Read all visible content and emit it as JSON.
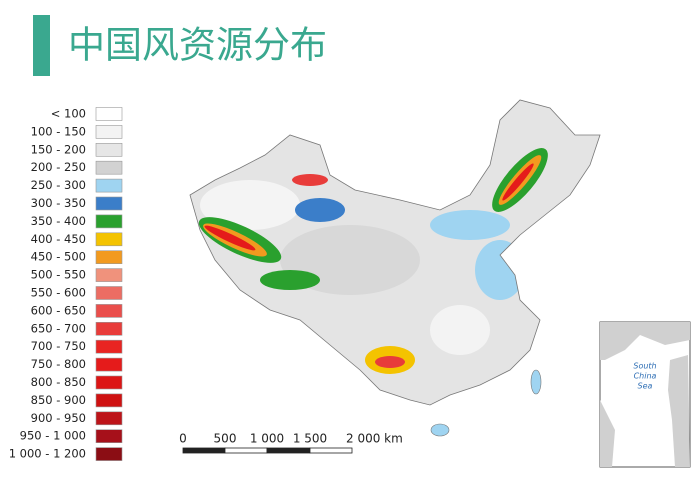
{
  "title": "中国风资源分布",
  "legend": {
    "items": [
      {
        "label": "< 100",
        "color": "#ffffff"
      },
      {
        "label": "100 - 150",
        "color": "#f3f3f3"
      },
      {
        "label": "150 - 200",
        "color": "#e6e6e6"
      },
      {
        "label": "200 - 250",
        "color": "#d2d2d2"
      },
      {
        "label": "250 - 300",
        "color": "#9fd4f1"
      },
      {
        "label": "300 - 350",
        "color": "#3b7ec9"
      },
      {
        "label": "350 - 400",
        "color": "#2aa02e"
      },
      {
        "label": "400 - 450",
        "color": "#f4c300"
      },
      {
        "label": "450 - 500",
        "color": "#f29a1f"
      },
      {
        "label": "500 - 550",
        "color": "#f0927c"
      },
      {
        "label": "550 - 600",
        "color": "#ec6d63"
      },
      {
        "label": "600 - 650",
        "color": "#ea4e4b"
      },
      {
        "label": "650 - 700",
        "color": "#e83c3a"
      },
      {
        "label": "700 - 750",
        "color": "#e82422"
      },
      {
        "label": "750 - 800",
        "color": "#e51b1b"
      },
      {
        "label": "800 - 850",
        "color": "#dc1515"
      },
      {
        "label": "850 - 900",
        "color": "#cf1111"
      },
      {
        "label": "900 - 950",
        "color": "#bd1419"
      },
      {
        "label": "950 - 1 000",
        "color": "#a6101a"
      },
      {
        "label": "1 000 - 1 200",
        "color": "#8b0d14"
      }
    ]
  },
  "scale_bar": {
    "labels": [
      "0",
      "500",
      "1 000",
      "1 500",
      "2 000 km"
    ]
  },
  "inset": {
    "lines": [
      "South",
      "China",
      "Sea"
    ]
  }
}
